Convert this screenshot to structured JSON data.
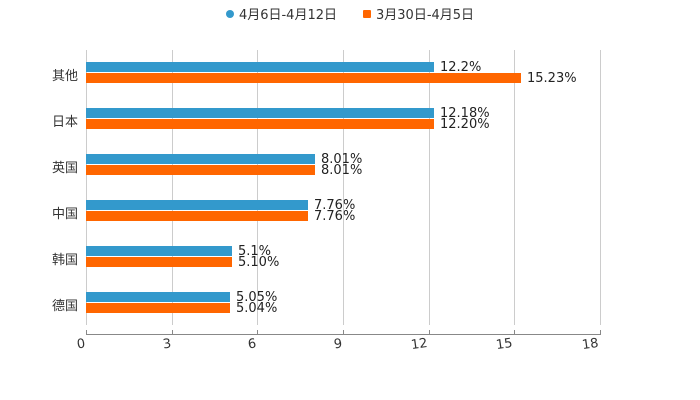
{
  "legend": [
    {
      "label": "4月6日-4月12日",
      "color": "#3399cc",
      "shape": "circle"
    },
    {
      "label": "3月30日-4月5日",
      "color": "#ff6600",
      "shape": "square"
    }
  ],
  "chart_data": {
    "type": "bar",
    "orientation": "horizontal",
    "title": "",
    "xlabel": "",
    "ylabel": "",
    "categories": [
      "其他",
      "日本",
      "英国",
      "中国",
      "韩国",
      "德国"
    ],
    "series": [
      {
        "name": "4月6日-4月12日",
        "color": "#3399cc",
        "values": [
          12.2,
          12.18,
          8.01,
          7.76,
          5.1,
          5.05
        ],
        "labels": [
          "12.2%",
          "12.18%",
          "8.01%",
          "7.76%",
          "5.1%",
          "5.05%"
        ]
      },
      {
        "name": "3月30日-4月5日",
        "color": "#ff6600",
        "values": [
          15.23,
          12.2,
          8.01,
          7.76,
          5.1,
          5.04
        ],
        "labels": [
          "15.23%",
          "12.20%",
          "8.01%",
          "7.76%",
          "5.10%",
          "5.04%"
        ]
      }
    ],
    "xlim": [
      0,
      18
    ],
    "xticks": [
      "0",
      "3",
      "6",
      "9",
      "12",
      "15",
      "18"
    ],
    "grid": true,
    "legend_position": "top"
  }
}
